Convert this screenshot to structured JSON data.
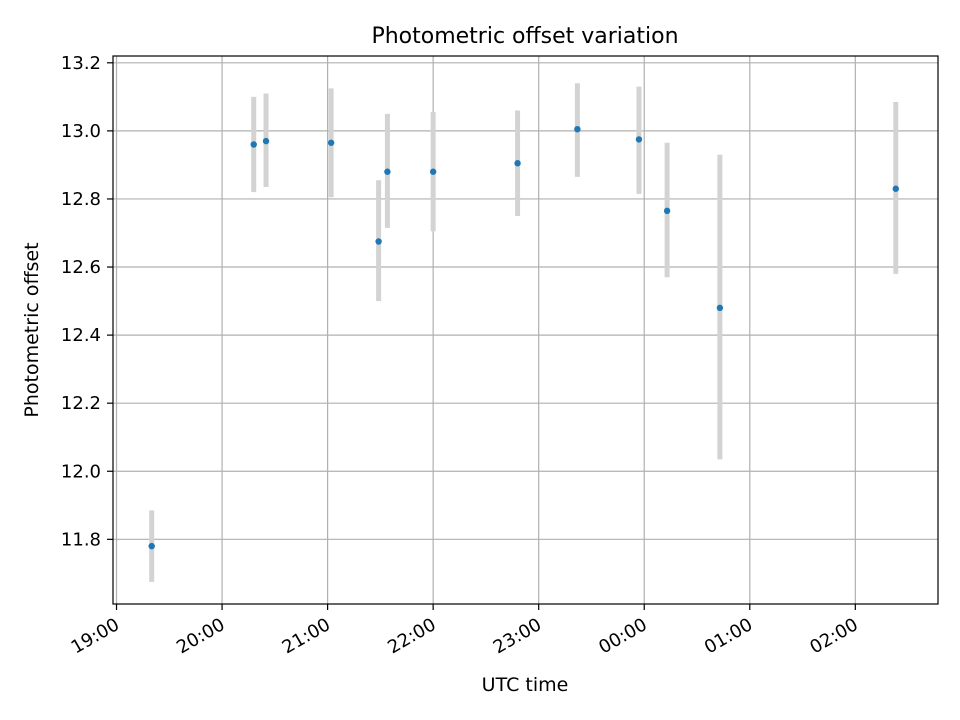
{
  "chart_data": {
    "type": "scatter",
    "title": "Photometric offset variation",
    "xlabel": "UTC time",
    "ylabel": "Photometric offset",
    "x_ticks": [
      "19:00",
      "20:00",
      "21:00",
      "22:00",
      "23:00",
      "00:00",
      "01:00",
      "02:00"
    ],
    "y_ticks": [
      "11.8",
      "12.0",
      "12.2",
      "12.4",
      "12.6",
      "12.8",
      "13.0",
      "13.2"
    ],
    "xlim": [
      "18:58",
      "02:47"
    ],
    "ylim": [
      11.61,
      13.22
    ],
    "grid": true,
    "point_color": "#1f77b4",
    "errorbar_color": "#d3d3d3",
    "grid_color": "#b0b0b0",
    "points": [
      {
        "time": "19:20",
        "y": 11.78,
        "err_low": 11.675,
        "err_high": 11.885
      },
      {
        "time": "20:18",
        "y": 12.96,
        "err_low": 12.82,
        "err_high": 13.1
      },
      {
        "time": "20:25",
        "y": 12.97,
        "err_low": 12.835,
        "err_high": 13.11
      },
      {
        "time": "21:02",
        "y": 12.965,
        "err_low": 12.805,
        "err_high": 13.125
      },
      {
        "time": "21:29",
        "y": 12.675,
        "err_low": 12.5,
        "err_high": 12.855
      },
      {
        "time": "21:34",
        "y": 12.88,
        "err_low": 12.715,
        "err_high": 13.05
      },
      {
        "time": "22:00",
        "y": 12.88,
        "err_low": 12.705,
        "err_high": 13.055
      },
      {
        "time": "22:48",
        "y": 12.905,
        "err_low": 12.75,
        "err_high": 13.06
      },
      {
        "time": "23:22",
        "y": 13.005,
        "err_low": 12.865,
        "err_high": 13.14
      },
      {
        "time": "23:57",
        "y": 12.975,
        "err_low": 12.815,
        "err_high": 13.13
      },
      {
        "time": "00:13",
        "y": 12.765,
        "err_low": 12.57,
        "err_high": 12.965
      },
      {
        "time": "00:43",
        "y": 12.48,
        "err_low": 12.035,
        "err_high": 12.93
      },
      {
        "time": "02:23",
        "y": 12.83,
        "err_low": 12.58,
        "err_high": 13.085
      }
    ]
  }
}
